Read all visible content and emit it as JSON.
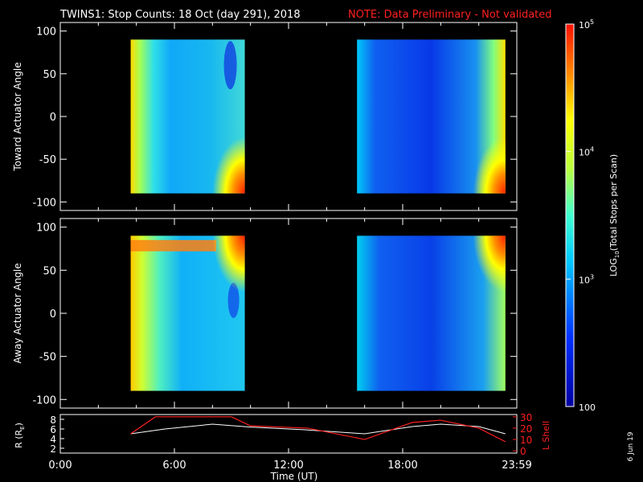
{
  "title": "TWINS1: Stop Counts: 18 Oct (day 291), 2018",
  "note": "NOTE: Data Preliminary - Not validated",
  "side_date": "6 Jun 19",
  "colors": {
    "note": "#ff2020",
    "axes": "#ffffff",
    "r_line": "#ffffff",
    "l_line": "#ff2020"
  },
  "chart_data": [
    {
      "type": "heatmap",
      "ylabel": "Toward Actuator Angle",
      "ylim": [
        -110,
        110
      ],
      "yticks": [
        100,
        50,
        0,
        -50,
        -100
      ],
      "xlim_hours": [
        0,
        24
      ],
      "data_blocks_hours": [
        [
          3.7,
          9.7
        ],
        [
          15.6,
          23.4
        ]
      ],
      "angle_range": [
        -90,
        90
      ]
    },
    {
      "type": "heatmap",
      "ylabel": "Away Actuator Angle",
      "ylim": [
        -110,
        110
      ],
      "yticks": [
        100,
        50,
        0,
        -50,
        -100
      ],
      "xlim_hours": [
        0,
        24
      ],
      "data_blocks_hours": [
        [
          3.7,
          9.7
        ],
        [
          15.6,
          23.4
        ]
      ],
      "angle_range": [
        -90,
        90
      ]
    },
    {
      "type": "line",
      "ylabel_left": "R (R",
      "ylabel_left_sub": "E",
      "ylabel_left_close": ")",
      "ylabel_right": "L Shell",
      "left_ticks": [
        "8",
        "6",
        "4",
        "2"
      ],
      "right_ticks": [
        "30",
        "20",
        "10",
        "0"
      ],
      "xlabel": "Time (UT)",
      "xtick_labels": [
        "0:00",
        "6:00",
        "12:00",
        "18:00",
        "23:59"
      ],
      "xtick_hours": [
        0,
        6,
        12,
        18,
        24
      ],
      "series": [
        {
          "name": "R",
          "x_hours": [
            3.7,
            5.5,
            8.0,
            10.0,
            13.0,
            16.0,
            18.5,
            20.0,
            22.0,
            23.4
          ],
          "values": [
            5.0,
            6.0,
            7.0,
            6.4,
            5.8,
            5.0,
            6.5,
            7.0,
            6.5,
            5.0
          ]
        },
        {
          "name": "L Shell",
          "x_hours": [
            3.7,
            5.0,
            9.0,
            10.0,
            13.0,
            16.0,
            18.5,
            20.0,
            22.0,
            23.4
          ],
          "values": [
            15,
            30,
            30,
            22,
            20,
            10,
            25,
            27,
            20,
            8
          ]
        }
      ]
    }
  ],
  "colorbar": {
    "label_prefix": "LOG",
    "label_sub": "10",
    "label_suffix": "(Total Stops per Scan)",
    "tick_labels": [
      "10",
      "10",
      "10",
      "100"
    ],
    "tick_exps": [
      "5",
      "4",
      "3",
      ""
    ],
    "range": [
      100,
      100000
    ]
  }
}
